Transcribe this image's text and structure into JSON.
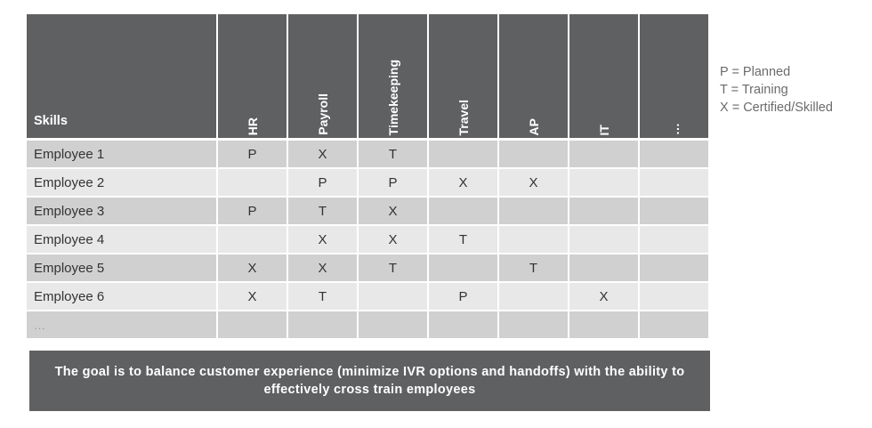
{
  "table": {
    "corner_label": "Skills",
    "columns": [
      "HR",
      "Payroll",
      "Timekeeping",
      "Travel",
      "AP",
      "IT",
      "…"
    ],
    "rows": [
      {
        "name": "Employee 1",
        "cells": [
          "P",
          "X",
          "T",
          "",
          "",
          "",
          ""
        ]
      },
      {
        "name": "Employee 2",
        "cells": [
          "",
          "P",
          "P",
          "X",
          "X",
          "",
          ""
        ]
      },
      {
        "name": "Employee 3",
        "cells": [
          "P",
          "T",
          "X",
          "",
          "",
          "",
          ""
        ]
      },
      {
        "name": "Employee 4",
        "cells": [
          "",
          "X",
          "X",
          "T",
          "",
          "",
          ""
        ]
      },
      {
        "name": "Employee 5",
        "cells": [
          "X",
          "X",
          "T",
          "",
          "T",
          "",
          ""
        ]
      },
      {
        "name": "Employee 6",
        "cells": [
          "X",
          "T",
          "",
          "P",
          "",
          "X",
          ""
        ]
      },
      {
        "name": "…",
        "cells": [
          "",
          "",
          "",
          "",
          "",
          "",
          ""
        ]
      }
    ]
  },
  "legend": [
    "P = Planned",
    "T = Training",
    "X = Certified/Skilled"
  ],
  "banner": "The goal is to balance customer experience (minimize IVR options and handoffs) with the ability to effectively cross train employees",
  "colors": {
    "header": "#5f6062",
    "row_dark": "#d0d0d0",
    "row_light": "#e8e8e8",
    "legend_text": "#6b6b6b"
  }
}
